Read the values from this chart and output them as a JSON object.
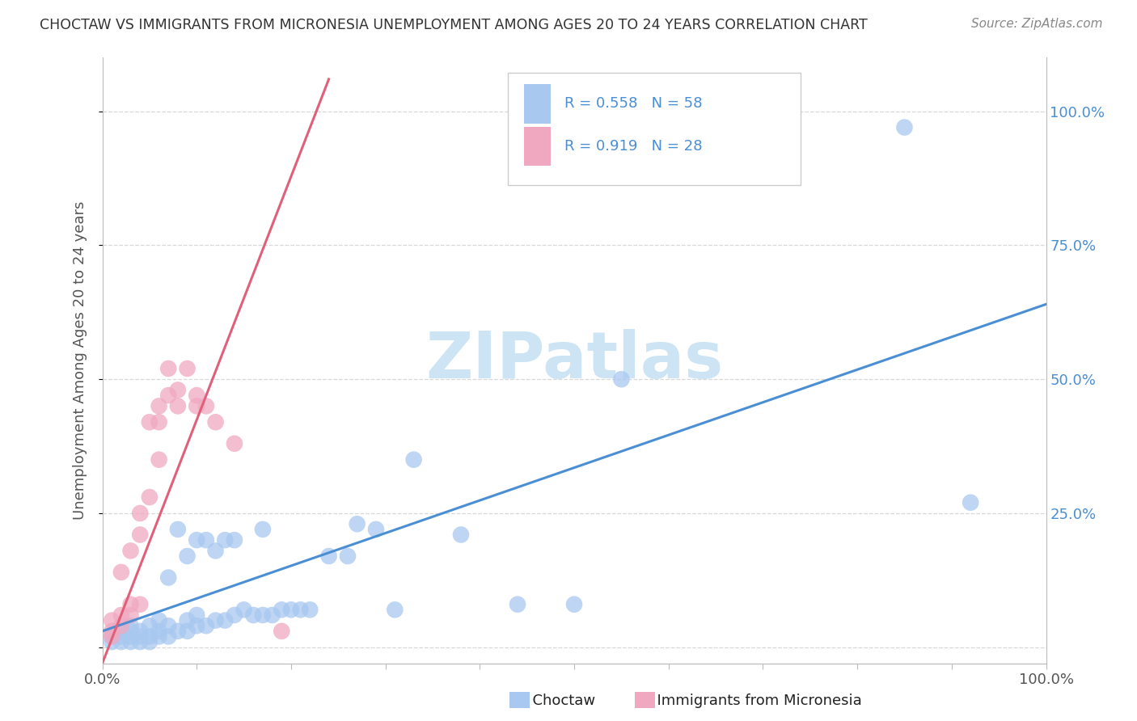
{
  "title": "CHOCTAW VS IMMIGRANTS FROM MICRONESIA UNEMPLOYMENT AMONG AGES 20 TO 24 YEARS CORRELATION CHART",
  "source": "Source: ZipAtlas.com",
  "ylabel": "Unemployment Among Ages 20 to 24 years",
  "xlim": [
    0,
    1
  ],
  "ylim": [
    -0.03,
    1.1
  ],
  "choctaw_R": 0.558,
  "choctaw_N": 58,
  "micronesia_R": 0.919,
  "micronesia_N": 28,
  "choctaw_color": "#a8c8f0",
  "micronesia_color": "#f0a8c0",
  "choctaw_line_color": "#4a8fd4",
  "micronesia_line_color": "#e0607a",
  "legend_label_choctaw": "Choctaw",
  "legend_label_micronesia": "Immigrants from Micronesia",
  "watermark_color": "#cce4f4",
  "choctaw_x": [
    0.01,
    0.01,
    0.02,
    0.02,
    0.02,
    0.03,
    0.03,
    0.03,
    0.03,
    0.04,
    0.04,
    0.04,
    0.05,
    0.05,
    0.05,
    0.06,
    0.06,
    0.06,
    0.07,
    0.07,
    0.07,
    0.08,
    0.08,
    0.09,
    0.09,
    0.09,
    0.1,
    0.1,
    0.1,
    0.11,
    0.11,
    0.12,
    0.12,
    0.13,
    0.13,
    0.14,
    0.14,
    0.15,
    0.16,
    0.17,
    0.17,
    0.18,
    0.19,
    0.2,
    0.21,
    0.22,
    0.24,
    0.26,
    0.27,
    0.29,
    0.31,
    0.33,
    0.38,
    0.44,
    0.5,
    0.55,
    0.85,
    0.92
  ],
  "choctaw_y": [
    0.01,
    0.02,
    0.01,
    0.02,
    0.03,
    0.01,
    0.02,
    0.03,
    0.04,
    0.01,
    0.02,
    0.03,
    0.01,
    0.02,
    0.04,
    0.02,
    0.03,
    0.05,
    0.02,
    0.04,
    0.13,
    0.03,
    0.22,
    0.03,
    0.05,
    0.17,
    0.04,
    0.06,
    0.2,
    0.04,
    0.2,
    0.05,
    0.18,
    0.05,
    0.2,
    0.06,
    0.2,
    0.07,
    0.06,
    0.06,
    0.22,
    0.06,
    0.07,
    0.07,
    0.07,
    0.07,
    0.17,
    0.17,
    0.23,
    0.22,
    0.07,
    0.35,
    0.21,
    0.08,
    0.08,
    0.5,
    0.97,
    0.27
  ],
  "micronesia_x": [
    0.01,
    0.01,
    0.01,
    0.02,
    0.02,
    0.02,
    0.03,
    0.03,
    0.03,
    0.04,
    0.04,
    0.04,
    0.05,
    0.05,
    0.06,
    0.06,
    0.06,
    0.07,
    0.07,
    0.08,
    0.08,
    0.09,
    0.1,
    0.1,
    0.11,
    0.12,
    0.14,
    0.19
  ],
  "micronesia_y": [
    0.02,
    0.03,
    0.05,
    0.04,
    0.06,
    0.14,
    0.06,
    0.08,
    0.18,
    0.08,
    0.21,
    0.25,
    0.28,
    0.42,
    0.35,
    0.42,
    0.45,
    0.47,
    0.52,
    0.45,
    0.48,
    0.52,
    0.45,
    0.47,
    0.45,
    0.42,
    0.38,
    0.03
  ],
  "choctaw_line_x": [
    0.0,
    1.0
  ],
  "choctaw_line_y": [
    0.03,
    0.64
  ],
  "micronesia_line_x": [
    0.0,
    0.24
  ],
  "micronesia_line_y": [
    -0.03,
    1.06
  ],
  "right_ytick_labels": [
    "",
    "25.0%",
    "50.0%",
    "75.0%",
    "100.0%"
  ],
  "right_ytick_values": [
    0.0,
    0.25,
    0.5,
    0.75,
    1.0
  ],
  "xtick_values": [
    0.0,
    0.1,
    0.2,
    0.3,
    0.4,
    0.5,
    0.6,
    0.7,
    0.8,
    0.9,
    1.0
  ],
  "grid_color": "#d8d8d8",
  "spine_color": "#bbbbbb",
  "tick_color": "#888888",
  "label_color": "#555555",
  "blue_text_color": "#4a8fd4",
  "title_color": "#333333",
  "source_color": "#888888"
}
